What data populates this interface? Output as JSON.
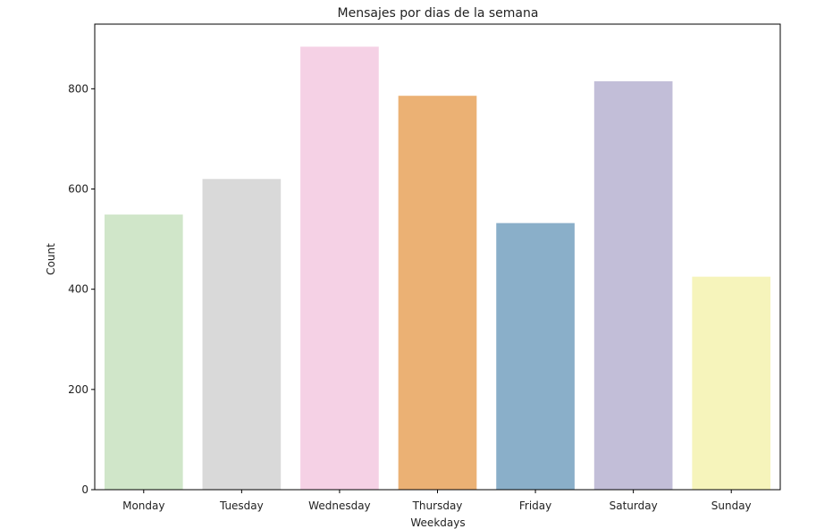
{
  "chart_data": {
    "type": "bar",
    "title": "Mensajes por dias de la semana",
    "xlabel": "Weekdays",
    "ylabel": "Count",
    "categories": [
      "Monday",
      "Tuesday",
      "Wednesday",
      "Thursday",
      "Friday",
      "Saturday",
      "Sunday"
    ],
    "values": [
      549,
      620,
      884,
      786,
      532,
      815,
      425
    ],
    "colors": [
      "#d0e6c9",
      "#d9d9d9",
      "#f5d1e5",
      "#ebb174",
      "#8aafc9",
      "#c2bed8",
      "#f6f4bb"
    ],
    "ylim": [
      0,
      929
    ],
    "yticks": [
      0,
      200,
      400,
      600,
      800
    ],
    "grid": false,
    "legend": "none"
  }
}
